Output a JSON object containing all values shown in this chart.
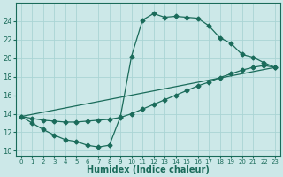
{
  "xlabel": "Humidex (Indice chaleur)",
  "bg_color": "#cce8e8",
  "line_color": "#1a6b5a",
  "grid_color": "#aad4d4",
  "xlim": [
    -0.5,
    23.5
  ],
  "ylim": [
    9.5,
    26.0
  ],
  "xticks": [
    0,
    1,
    2,
    3,
    4,
    5,
    6,
    7,
    8,
    9,
    10,
    11,
    12,
    13,
    14,
    15,
    16,
    17,
    18,
    19,
    20,
    21,
    22,
    23
  ],
  "yticks": [
    10,
    12,
    14,
    16,
    18,
    20,
    22,
    24
  ],
  "line1_x": [
    0,
    1,
    2,
    3,
    4,
    5,
    6,
    7,
    8,
    9,
    10,
    11,
    12,
    13,
    14,
    15,
    16,
    17,
    18,
    19,
    20,
    21,
    22,
    23
  ],
  "line1_y": [
    13.7,
    13.0,
    12.3,
    11.7,
    11.2,
    11.0,
    10.6,
    10.4,
    10.6,
    13.7,
    20.2,
    24.1,
    24.8,
    24.4,
    24.5,
    24.4,
    24.3,
    23.5,
    22.2,
    21.6,
    20.4,
    20.1,
    19.5,
    19.0
  ],
  "line2_x": [
    0,
    1,
    2,
    3,
    4,
    5,
    6,
    7,
    8,
    9,
    10,
    11,
    12,
    13,
    14,
    15,
    16,
    17,
    18,
    19,
    20,
    21,
    22,
    23
  ],
  "line2_y": [
    13.7,
    13.5,
    13.3,
    13.2,
    13.1,
    13.1,
    13.2,
    13.3,
    13.4,
    13.6,
    14.0,
    14.5,
    15.0,
    15.5,
    16.0,
    16.5,
    17.0,
    17.4,
    17.9,
    18.3,
    18.7,
    19.0,
    19.2,
    19.0
  ],
  "line3_x": [
    0,
    23
  ],
  "line3_y": [
    13.7,
    19.0
  ]
}
